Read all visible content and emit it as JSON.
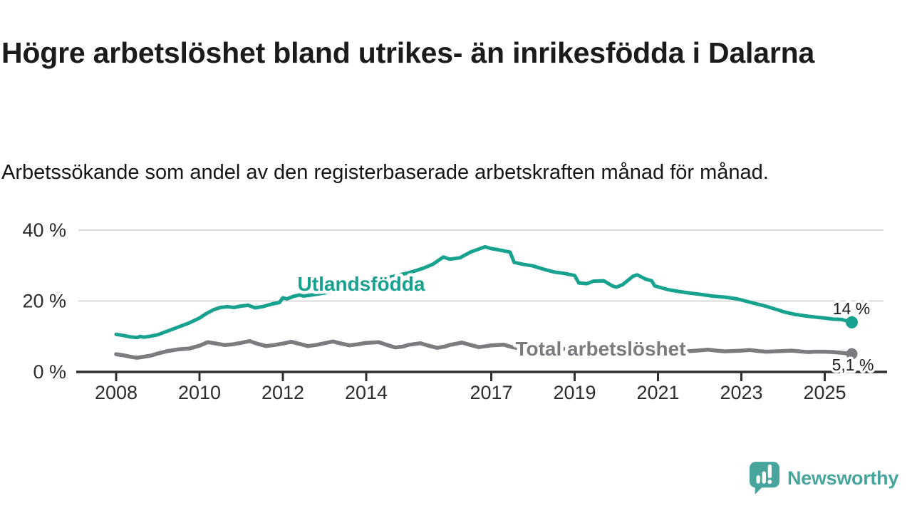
{
  "title": "Högre arbetslöshet bland utrikes- än inrikesfödda i Dalarna",
  "subtitle": "Arbetssökande som andel av den registerbaserade arbetskraften månad för månad.",
  "branding": {
    "logo_text": "Newsworthy",
    "logo_icon": "bar-chart-speech-bubble-icon",
    "logo_color": "#47a59e"
  },
  "colors": {
    "foreign_born_line": "#17a28f",
    "total_line": "#7c7c80",
    "axis": "#2f2f2f",
    "gridline": "#d9d9d9",
    "text": "#1b1b1b"
  },
  "chart_data": {
    "type": "line",
    "title": "Högre arbetslöshet bland utrikes- än inrikesfödda i Dalarna",
    "subtitle": "Arbetssökande som andel av den registerbaserade arbetskraften månad för månad.",
    "unit": "%",
    "grid": "horizontal",
    "legend": "inline-labels",
    "x_axis": {
      "range": [
        2008,
        2025.7
      ],
      "tick_years": [
        2008,
        2010,
        2012,
        2014,
        2017,
        2019,
        2021,
        2023,
        2025
      ]
    },
    "y_axis": {
      "range": [
        0,
        42
      ],
      "ticks": [
        {
          "value": 0,
          "label": "0 %"
        },
        {
          "value": 20,
          "label": "20 %"
        },
        {
          "value": 40,
          "label": "40 %"
        }
      ]
    },
    "series": [
      {
        "name": "Utlandsfödda",
        "color": "#17a28f",
        "end_value": 14,
        "end_label": "14 %",
        "points": [
          [
            2008.0,
            10.6
          ],
          [
            2008.17,
            10.3
          ],
          [
            2008.33,
            9.9
          ],
          [
            2008.5,
            9.7
          ],
          [
            2008.58,
            10.0
          ],
          [
            2008.67,
            9.8
          ],
          [
            2008.83,
            10.1
          ],
          [
            2009.0,
            10.5
          ],
          [
            2009.25,
            11.6
          ],
          [
            2009.5,
            12.7
          ],
          [
            2009.75,
            13.8
          ],
          [
            2010.0,
            15.2
          ],
          [
            2010.17,
            16.5
          ],
          [
            2010.33,
            17.5
          ],
          [
            2010.5,
            18.2
          ],
          [
            2010.67,
            18.4
          ],
          [
            2010.83,
            18.2
          ],
          [
            2011.0,
            18.6
          ],
          [
            2011.17,
            18.8
          ],
          [
            2011.33,
            18.1
          ],
          [
            2011.5,
            18.4
          ],
          [
            2011.75,
            19.2
          ],
          [
            2011.92,
            19.6
          ],
          [
            2012.0,
            20.9
          ],
          [
            2012.1,
            20.6
          ],
          [
            2012.25,
            21.3
          ],
          [
            2012.4,
            21.7
          ],
          [
            2012.5,
            21.4
          ],
          [
            2012.75,
            21.8
          ],
          [
            2013.0,
            22.3
          ],
          [
            2013.5,
            23.3
          ],
          [
            2014.0,
            24.8
          ],
          [
            2014.5,
            26.5
          ],
          [
            2014.8,
            27.4
          ],
          [
            2015.0,
            27.9
          ],
          [
            2015.2,
            28.6
          ],
          [
            2015.4,
            29.4
          ],
          [
            2015.6,
            30.4
          ],
          [
            2015.85,
            32.4
          ],
          [
            2016.0,
            31.8
          ],
          [
            2016.25,
            32.2
          ],
          [
            2016.5,
            33.8
          ],
          [
            2016.85,
            35.3
          ],
          [
            2017.0,
            34.8
          ],
          [
            2017.2,
            34.4
          ],
          [
            2017.45,
            33.8
          ],
          [
            2017.55,
            30.9
          ],
          [
            2017.75,
            30.4
          ],
          [
            2018.0,
            29.9
          ],
          [
            2018.25,
            29.0
          ],
          [
            2018.5,
            28.2
          ],
          [
            2018.75,
            27.8
          ],
          [
            2019.0,
            27.2
          ],
          [
            2019.1,
            25.1
          ],
          [
            2019.3,
            24.9
          ],
          [
            2019.45,
            25.6
          ],
          [
            2019.7,
            25.7
          ],
          [
            2019.9,
            24.3
          ],
          [
            2020.0,
            23.9
          ],
          [
            2020.15,
            24.6
          ],
          [
            2020.4,
            27.0
          ],
          [
            2020.5,
            27.4
          ],
          [
            2020.7,
            26.2
          ],
          [
            2020.85,
            25.7
          ],
          [
            2020.92,
            24.3
          ],
          [
            2021.0,
            24.0
          ],
          [
            2021.25,
            23.2
          ],
          [
            2021.5,
            22.7
          ],
          [
            2021.8,
            22.2
          ],
          [
            2022.0,
            21.9
          ],
          [
            2022.3,
            21.4
          ],
          [
            2022.6,
            21.1
          ],
          [
            2022.9,
            20.6
          ],
          [
            2023.0,
            20.3
          ],
          [
            2023.3,
            19.4
          ],
          [
            2023.6,
            18.5
          ],
          [
            2023.9,
            17.4
          ],
          [
            2024.0,
            17.0
          ],
          [
            2024.3,
            16.2
          ],
          [
            2024.6,
            15.7
          ],
          [
            2024.9,
            15.3
          ],
          [
            2025.0,
            15.2
          ],
          [
            2025.2,
            14.9
          ],
          [
            2025.4,
            14.8
          ],
          [
            2025.55,
            14.3
          ],
          [
            2025.65,
            14.0
          ]
        ]
      },
      {
        "name": "Total arbetslöshet",
        "color": "#7c7c80",
        "end_value": 5.1,
        "end_label": "5,1 %",
        "points": [
          [
            2008.0,
            5.0
          ],
          [
            2008.17,
            4.7
          ],
          [
            2008.33,
            4.3
          ],
          [
            2008.5,
            4.0
          ],
          [
            2008.67,
            4.3
          ],
          [
            2008.83,
            4.6
          ],
          [
            2009.0,
            5.2
          ],
          [
            2009.25,
            5.9
          ],
          [
            2009.5,
            6.4
          ],
          [
            2009.75,
            6.6
          ],
          [
            2010.0,
            7.4
          ],
          [
            2010.2,
            8.4
          ],
          [
            2010.4,
            8.0
          ],
          [
            2010.6,
            7.6
          ],
          [
            2010.8,
            7.8
          ],
          [
            2011.0,
            8.2
          ],
          [
            2011.2,
            8.7
          ],
          [
            2011.4,
            7.9
          ],
          [
            2011.6,
            7.3
          ],
          [
            2011.8,
            7.6
          ],
          [
            2012.0,
            8.0
          ],
          [
            2012.2,
            8.5
          ],
          [
            2012.4,
            7.9
          ],
          [
            2012.6,
            7.3
          ],
          [
            2012.8,
            7.6
          ],
          [
            2013.0,
            8.1
          ],
          [
            2013.2,
            8.6
          ],
          [
            2013.4,
            8.0
          ],
          [
            2013.6,
            7.5
          ],
          [
            2013.8,
            7.8
          ],
          [
            2014.0,
            8.2
          ],
          [
            2014.3,
            8.4
          ],
          [
            2014.5,
            7.6
          ],
          [
            2014.7,
            6.9
          ],
          [
            2014.9,
            7.2
          ],
          [
            2015.0,
            7.6
          ],
          [
            2015.3,
            8.1
          ],
          [
            2015.5,
            7.4
          ],
          [
            2015.7,
            6.8
          ],
          [
            2015.9,
            7.2
          ],
          [
            2016.0,
            7.6
          ],
          [
            2016.3,
            8.3
          ],
          [
            2016.5,
            7.6
          ],
          [
            2016.7,
            7.0
          ],
          [
            2016.9,
            7.3
          ],
          [
            2017.0,
            7.5
          ],
          [
            2017.3,
            7.7
          ],
          [
            2017.5,
            7.0
          ],
          [
            2017.7,
            6.6
          ],
          [
            2017.9,
            7.0
          ],
          [
            2018.0,
            7.2
          ],
          [
            2018.3,
            7.3
          ],
          [
            2018.5,
            6.7
          ],
          [
            2018.7,
            6.4
          ],
          [
            2018.9,
            6.7
          ],
          [
            2019.0,
            6.9
          ],
          [
            2019.3,
            6.8
          ],
          [
            2019.5,
            6.4
          ],
          [
            2019.7,
            6.2
          ],
          [
            2019.9,
            6.6
          ],
          [
            2020.0,
            6.9
          ],
          [
            2020.3,
            7.6
          ],
          [
            2020.5,
            7.9
          ],
          [
            2020.7,
            7.6
          ],
          [
            2020.9,
            7.2
          ],
          [
            2021.0,
            7.0
          ],
          [
            2021.2,
            6.6
          ],
          [
            2021.4,
            6.2
          ],
          [
            2021.6,
            5.9
          ],
          [
            2021.8,
            5.9
          ],
          [
            2022.0,
            6.1
          ],
          [
            2022.2,
            6.3
          ],
          [
            2022.4,
            6.0
          ],
          [
            2022.6,
            5.8
          ],
          [
            2022.8,
            5.9
          ],
          [
            2023.0,
            6.0
          ],
          [
            2023.2,
            6.2
          ],
          [
            2023.4,
            5.9
          ],
          [
            2023.6,
            5.7
          ],
          [
            2023.8,
            5.8
          ],
          [
            2024.0,
            5.9
          ],
          [
            2024.2,
            6.0
          ],
          [
            2024.4,
            5.8
          ],
          [
            2024.6,
            5.6
          ],
          [
            2024.8,
            5.7
          ],
          [
            2025.0,
            5.7
          ],
          [
            2025.2,
            5.6
          ],
          [
            2025.4,
            5.4
          ],
          [
            2025.55,
            5.2
          ],
          [
            2025.65,
            5.1
          ]
        ]
      }
    ]
  }
}
